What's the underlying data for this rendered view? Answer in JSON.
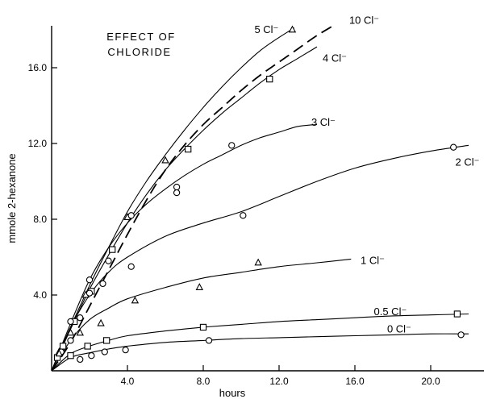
{
  "chart_data": {
    "type": "line",
    "title": "EFFECT OF CHLORIDE",
    "title_lines": [
      "EFFECT OF",
      "CHLORIDE"
    ],
    "xlabel": "hours",
    "ylabel": "mmole 2-hexanone",
    "xlim": [
      0,
      23
    ],
    "ylim": [
      0,
      18
    ],
    "x_ticks": [
      4.0,
      8.0,
      12.0,
      16.0,
      20.0
    ],
    "x_tick_labels": [
      "4.0",
      "8.0",
      "12.0",
      "16.0",
      "20.0"
    ],
    "y_ticks": [
      4.0,
      8.0,
      12.0,
      16.0
    ],
    "y_tick_labels": [
      "4.0",
      "8.0",
      "12.0",
      "16.0"
    ],
    "grid": false,
    "legend": "none (curves labelled directly)",
    "series": [
      {
        "name": "10Cl⁻",
        "marker": "none",
        "dashed": true,
        "label_text": "10 Cl⁻",
        "label_at": [
          15.7,
          18.5
        ],
        "curve": [
          [
            0,
            0
          ],
          [
            1,
            1.5
          ],
          [
            2,
            3.4
          ],
          [
            3,
            5.3
          ],
          [
            4,
            7.2
          ],
          [
            5,
            9.0
          ],
          [
            6,
            10.6
          ],
          [
            7,
            11.9
          ],
          [
            8,
            13.0
          ],
          [
            9,
            13.9
          ],
          [
            10,
            14.8
          ],
          [
            11,
            15.6
          ],
          [
            12,
            16.3
          ],
          [
            13,
            17.0
          ],
          [
            14,
            17.7
          ],
          [
            15,
            18.3
          ]
        ],
        "points": []
      },
      {
        "name": "5Cl⁻",
        "marker": "triangle",
        "dashed": false,
        "label_text": "5 Cl⁻",
        "label_at": [
          10.7,
          18.0
        ],
        "curve": [
          [
            0,
            0
          ],
          [
            1,
            2.3
          ],
          [
            2,
            4.5
          ],
          [
            3,
            6.5
          ],
          [
            4,
            8.4
          ],
          [
            5,
            10.0
          ],
          [
            6,
            11.4
          ],
          [
            7,
            12.7
          ],
          [
            8,
            13.9
          ],
          [
            9,
            15.0
          ],
          [
            10,
            16.0
          ],
          [
            11,
            16.9
          ],
          [
            12,
            17.6
          ],
          [
            12.8,
            18.1
          ]
        ],
        "points": [
          [
            0.4,
            1.0
          ],
          [
            1.0,
            2.0
          ],
          [
            1.8,
            4.0
          ],
          [
            4.0,
            8.1
          ],
          [
            6.0,
            11.1
          ],
          [
            12.7,
            18.0
          ]
        ]
      },
      {
        "name": "4Cl⁻",
        "marker": "square",
        "dashed": false,
        "label_text": "4 Cl⁻",
        "label_at": [
          14.3,
          16.5
        ],
        "curve": [
          [
            0,
            0
          ],
          [
            1,
            2.2
          ],
          [
            2,
            4.3
          ],
          [
            3,
            6.1
          ],
          [
            4,
            7.8
          ],
          [
            5,
            9.3
          ],
          [
            6,
            10.6
          ],
          [
            7,
            11.7
          ],
          [
            8,
            12.7
          ],
          [
            9,
            13.6
          ],
          [
            10,
            14.4
          ],
          [
            11,
            15.2
          ],
          [
            12,
            15.9
          ],
          [
            13,
            16.5
          ],
          [
            14,
            17.1
          ]
        ],
        "points": [
          [
            0.3,
            0.7
          ],
          [
            0.6,
            1.3
          ],
          [
            1.2,
            2.6
          ],
          [
            2.1,
            4.2
          ],
          [
            3.2,
            6.4
          ],
          [
            7.2,
            11.7
          ],
          [
            11.5,
            15.4
          ]
        ]
      },
      {
        "name": "3Cl⁻",
        "marker": "circle",
        "dashed": false,
        "label_text": "3 Cl⁻",
        "label_at": [
          13.7,
          13.1
        ],
        "curve": [
          [
            0,
            0
          ],
          [
            1,
            2.5
          ],
          [
            2,
            4.8
          ],
          [
            3,
            6.5
          ],
          [
            4,
            7.8
          ],
          [
            5,
            8.8
          ],
          [
            6,
            9.6
          ],
          [
            7,
            10.3
          ],
          [
            8,
            10.9
          ],
          [
            9,
            11.4
          ],
          [
            10,
            11.9
          ],
          [
            11,
            12.3
          ],
          [
            12,
            12.6
          ],
          [
            13,
            12.9
          ],
          [
            14,
            13.0
          ]
        ],
        "points": [
          [
            1.0,
            2.6
          ],
          [
            2.0,
            4.8
          ],
          [
            3.0,
            5.8
          ],
          [
            4.2,
            8.2
          ],
          [
            6.6,
            9.7
          ],
          [
            9.5,
            11.9
          ]
        ]
      },
      {
        "name": "2Cl⁻",
        "marker": "circle",
        "dashed": false,
        "label_text": "2 Cl⁻",
        "label_at": [
          21.3,
          11.0
        ],
        "curve": [
          [
            0,
            0
          ],
          [
            1,
            2.3
          ],
          [
            2,
            4.0
          ],
          [
            3,
            5.2
          ],
          [
            4,
            6.0
          ],
          [
            6,
            7.1
          ],
          [
            8,
            7.8
          ],
          [
            10,
            8.4
          ],
          [
            12,
            9.2
          ],
          [
            14,
            10.0
          ],
          [
            16,
            10.7
          ],
          [
            18,
            11.2
          ],
          [
            20,
            11.6
          ],
          [
            22,
            11.9
          ]
        ],
        "points": [
          [
            0.5,
            1.0
          ],
          [
            1.0,
            1.6
          ],
          [
            1.5,
            2.8
          ],
          [
            2.0,
            4.1
          ],
          [
            2.7,
            4.6
          ],
          [
            4.2,
            5.5
          ],
          [
            6.6,
            9.4
          ],
          [
            10.1,
            8.2
          ],
          [
            21.2,
            11.8
          ]
        ]
      },
      {
        "name": "1Cl⁻",
        "marker": "triangle",
        "dashed": false,
        "label_text": "1 Cl⁻",
        "label_at": [
          16.3,
          5.8
        ],
        "curve": [
          [
            0,
            0
          ],
          [
            1,
            1.6
          ],
          [
            2,
            2.7
          ],
          [
            3,
            3.3
          ],
          [
            4,
            3.8
          ],
          [
            6,
            4.4
          ],
          [
            8,
            4.9
          ],
          [
            10,
            5.2
          ],
          [
            12,
            5.5
          ],
          [
            14,
            5.7
          ],
          [
            15.8,
            5.9
          ]
        ],
        "points": [
          [
            0.4,
            0.9
          ],
          [
            1.5,
            2.0
          ],
          [
            2.6,
            2.5
          ],
          [
            4.4,
            3.7
          ],
          [
            7.8,
            4.4
          ],
          [
            10.9,
            5.7
          ]
        ]
      },
      {
        "name": "0.5Cl⁻",
        "marker": "square",
        "dashed": false,
        "label_text": "0.5 Cl⁻",
        "label_at": [
          17.0,
          3.1
        ],
        "curve": [
          [
            0,
            0
          ],
          [
            1,
            0.9
          ],
          [
            2,
            1.3
          ],
          [
            3,
            1.6
          ],
          [
            4,
            1.85
          ],
          [
            6,
            2.1
          ],
          [
            8,
            2.3
          ],
          [
            10,
            2.45
          ],
          [
            12,
            2.6
          ],
          [
            14,
            2.7
          ],
          [
            16,
            2.8
          ],
          [
            18,
            2.9
          ],
          [
            20,
            2.95
          ],
          [
            22,
            3.0
          ]
        ],
        "points": [
          [
            1.0,
            0.8
          ],
          [
            1.9,
            1.3
          ],
          [
            2.9,
            1.6
          ],
          [
            8.0,
            2.3
          ],
          [
            21.4,
            3.0
          ]
        ]
      },
      {
        "name": "0Cl⁻",
        "marker": "circle",
        "dashed": false,
        "label_text": "0 Cl⁻",
        "label_at": [
          17.7,
          2.2
        ],
        "curve": [
          [
            0,
            0
          ],
          [
            1,
            0.7
          ],
          [
            2,
            0.95
          ],
          [
            3,
            1.15
          ],
          [
            4,
            1.3
          ],
          [
            6,
            1.5
          ],
          [
            8,
            1.6
          ],
          [
            10,
            1.7
          ],
          [
            12,
            1.75
          ],
          [
            14,
            1.8
          ],
          [
            16,
            1.85
          ],
          [
            18,
            1.9
          ],
          [
            20,
            1.95
          ],
          [
            22,
            1.95
          ]
        ],
        "points": [
          [
            1.5,
            0.6
          ],
          [
            2.1,
            0.8
          ],
          [
            2.8,
            1.0
          ],
          [
            3.9,
            1.1
          ],
          [
            8.3,
            1.6
          ],
          [
            21.6,
            1.9
          ]
        ]
      }
    ]
  }
}
